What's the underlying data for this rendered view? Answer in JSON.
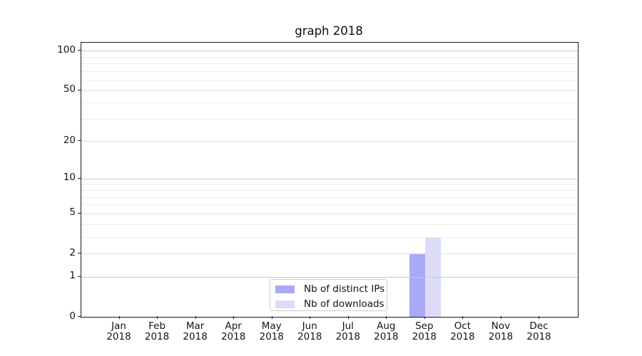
{
  "chart_data": {
    "type": "bar",
    "title": "graph 2018",
    "categories": [
      "Jan",
      "Feb",
      "Mar",
      "Apr",
      "May",
      "Jun",
      "Jul",
      "Aug",
      "Sep",
      "Oct",
      "Nov",
      "Dec"
    ],
    "category_subtext": "2018",
    "series": [
      {
        "name": "Nb of distinct IPs",
        "color": "#a9a9f5",
        "values": [
          0,
          0,
          0,
          0,
          0,
          0,
          0,
          0,
          2,
          0,
          0,
          0
        ]
      },
      {
        "name": "Nb of downloads",
        "color": "#dcdcfa",
        "values": [
          0,
          0,
          0,
          0,
          0,
          0,
          0,
          0,
          3,
          0,
          0,
          0
        ]
      }
    ],
    "yscale": "log1p",
    "ylim": [
      0,
      115
    ],
    "yticks": [
      0,
      1,
      2,
      5,
      10,
      20,
      50,
      100
    ],
    "ytick_labels": [
      "0",
      "1",
      "2",
      "5",
      "10",
      "20",
      "50",
      "100"
    ],
    "minor_gridlines": [
      3,
      4,
      6,
      7,
      8,
      9,
      30,
      40,
      60,
      70,
      80,
      90
    ],
    "grid": "on",
    "legend_position": "lower center",
    "colors": {
      "major_decade_gridline": "#c9c9c9",
      "major_gridline": "#dedede",
      "minor_gridline": "#eeeeee",
      "spine": "#1a1a1a",
      "background": "#ffffff"
    }
  }
}
